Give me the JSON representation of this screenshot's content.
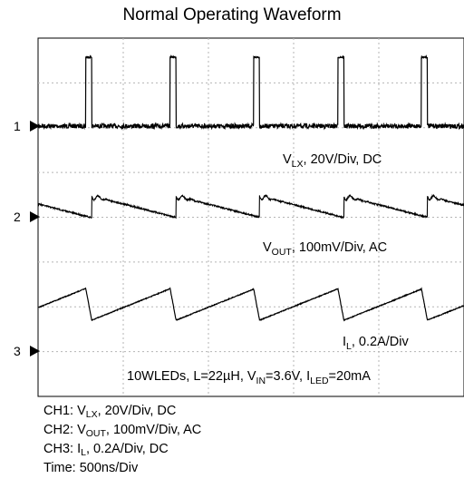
{
  "chart_data": {
    "type": "line",
    "title": "Normal Operating Waveform",
    "time_per_div": "500ns/Div",
    "switching_period_us": 1.0,
    "x_range_us": [
      0,
      5
    ],
    "series": [
      {
        "channel": "1",
        "label_main": "V",
        "label_sub": "LX",
        "label_rest": ", 20V/Div, DC",
        "description": "switch node, high-side pulses",
        "low_level_V": 0,
        "high_level_V": 30,
        "pulse_width_us": 0.07,
        "pulse_times_us": [
          0.56,
          1.55,
          2.53,
          3.52,
          4.5
        ]
      },
      {
        "channel": "2",
        "label_main": "V",
        "label_sub": "OUT",
        "label_rest": ", 100mV/Div, AC",
        "description": "output ripple, sawtooth with ringing",
        "ripple_pp_mV": 50
      },
      {
        "channel": "3",
        "label_main": "I",
        "label_sub": "L",
        "label_rest": ", 0.2A/Div",
        "description": "inductor current, triangular",
        "min_A": 0.35,
        "max_A": 0.55
      }
    ],
    "annotation": {
      "parts": [
        {
          "t": "10WLEDs, L=22µH, V"
        },
        {
          "sub": "IN"
        },
        {
          "t": "=3.6V, I"
        },
        {
          "sub": "LED"
        },
        {
          "t": "=20mA"
        }
      ]
    }
  },
  "settings": {
    "ch1": {
      "prefix": "CH1: V",
      "sub": "LX",
      "rest": ", 20V/Div, DC"
    },
    "ch2": {
      "prefix": "CH2: V",
      "sub": "OUT",
      "rest": ", 100mV/Div, AC"
    },
    "ch3": {
      "prefix": "CH3: I",
      "sub": "L",
      "rest": ", 0.2A/Div, DC"
    },
    "time": "Time: 500ns/Div"
  }
}
